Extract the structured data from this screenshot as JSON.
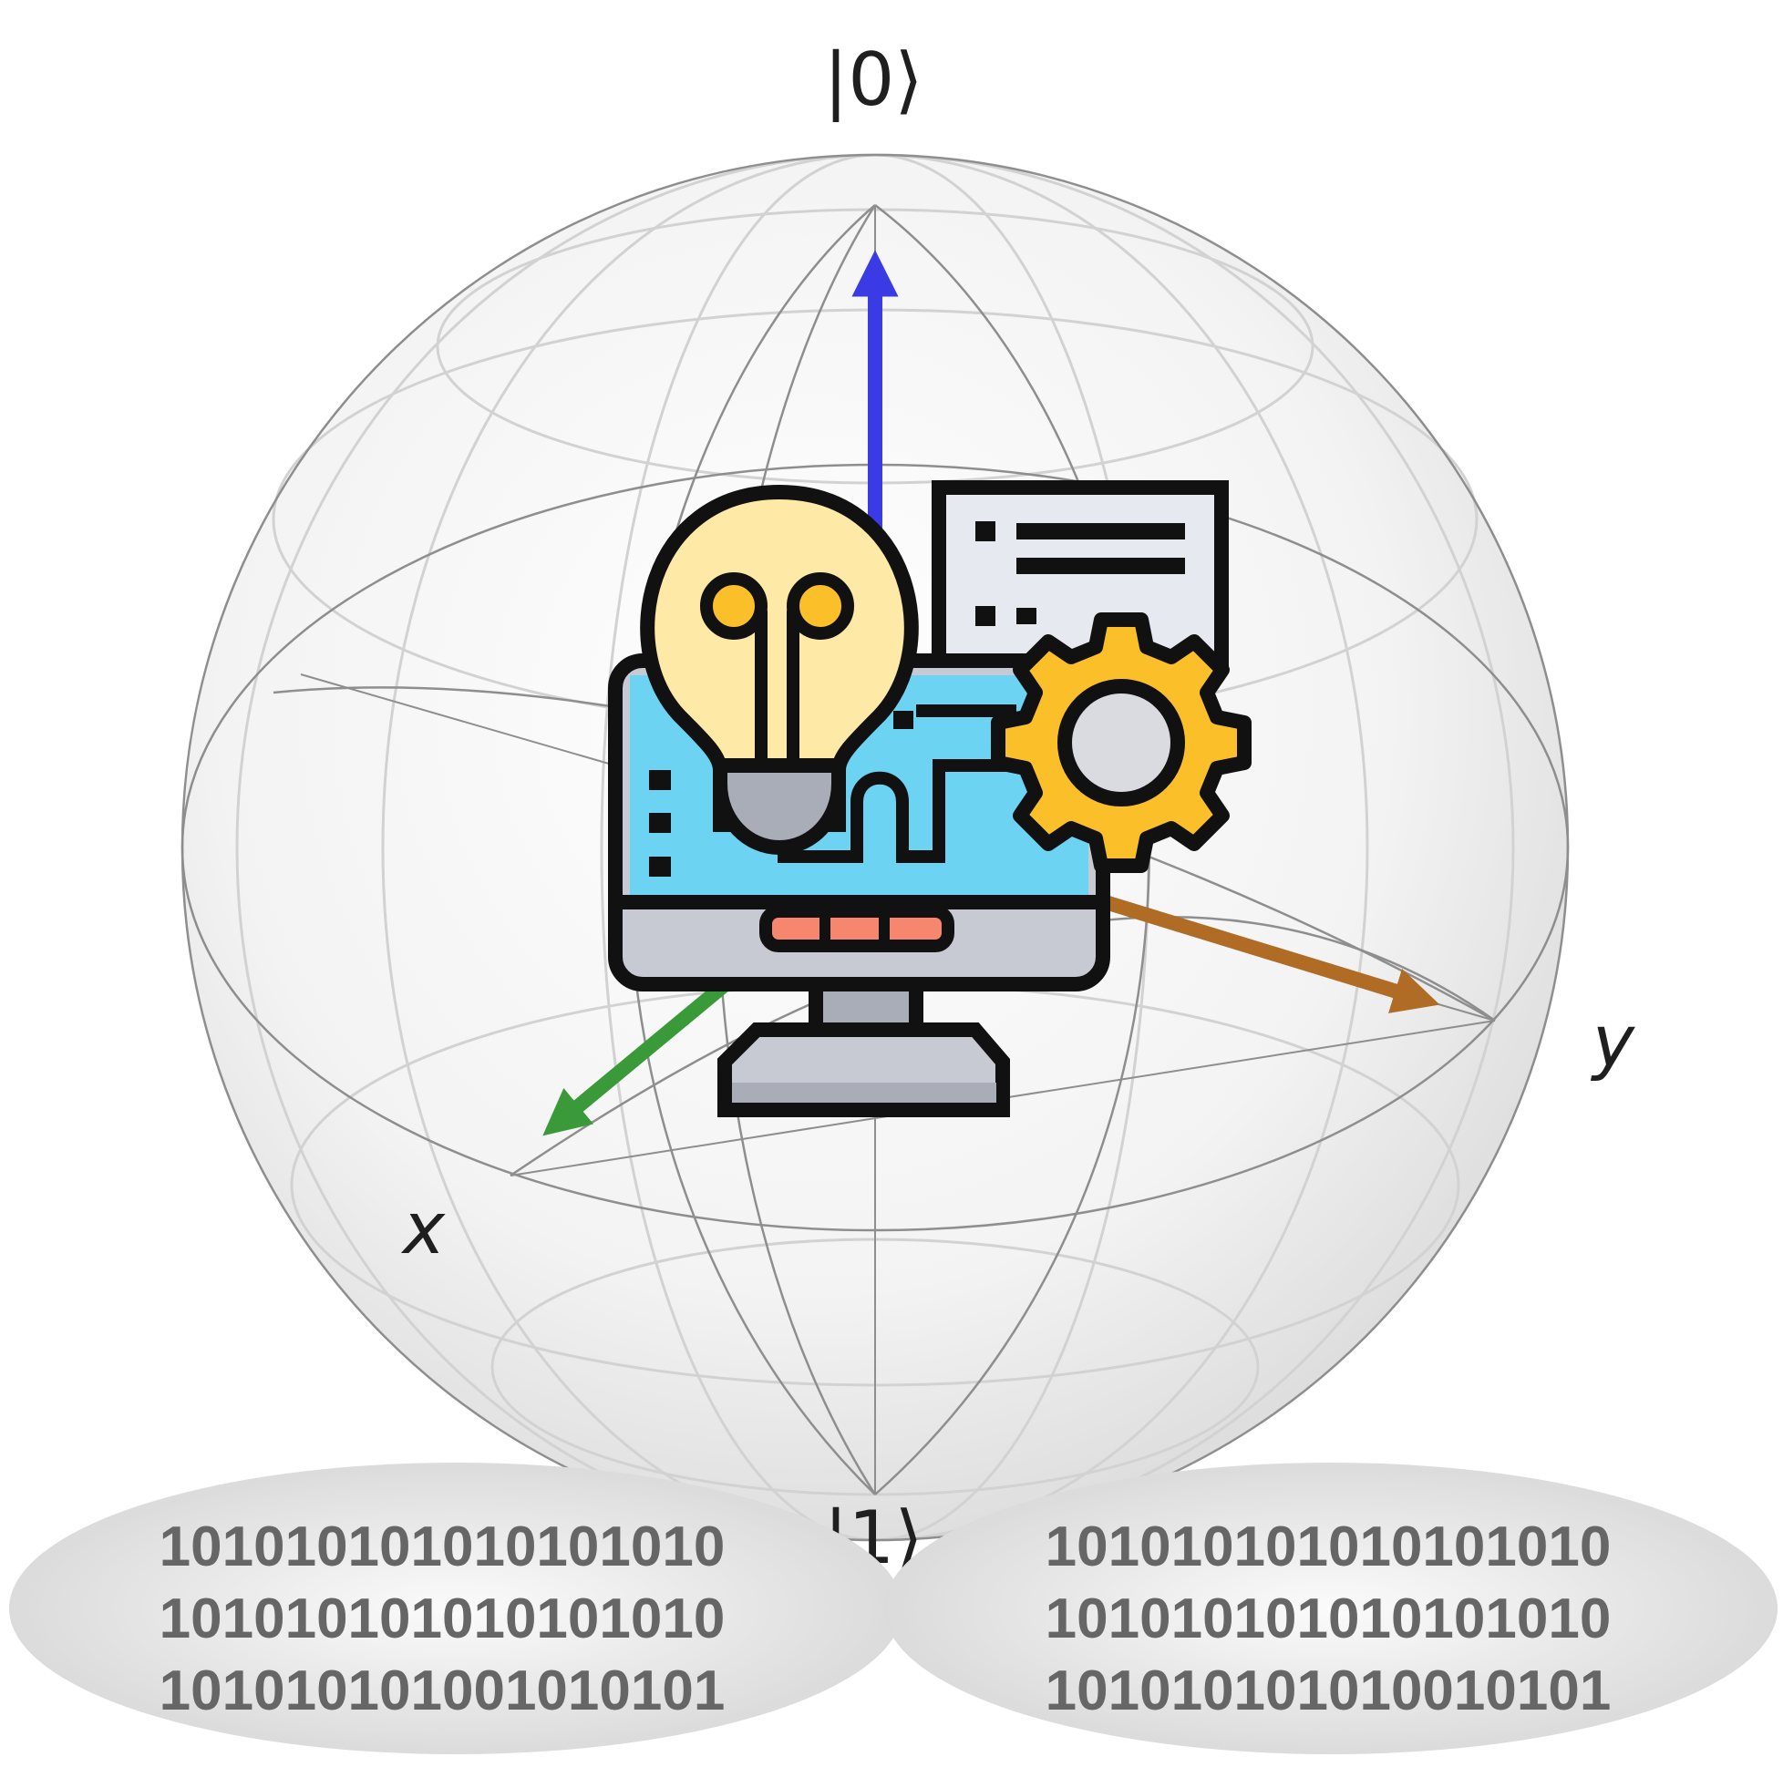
{
  "labels": {
    "ket0": "|0⟩",
    "ket1": "|1⟩",
    "x_axis": "x",
    "y_axis": "y"
  },
  "binary_left": [
    "101010101010101010",
    "101010101010101010",
    "101010101001010101"
  ],
  "binary_right": [
    "101010101010101010",
    "101010101010101010",
    "101010101010010101"
  ],
  "colors": {
    "z_arrow": "#3b3be6",
    "x_arrow": "#3a9a3a",
    "y_arrow": "#b06b25",
    "screen": "#6dd3f2",
    "bulb": "#ffe9a6",
    "gear": "#fbbf2a",
    "outline": "#111111"
  },
  "icons": [
    "bloch-sphere",
    "lightbulb-icon",
    "monitor-icon",
    "gear-icon",
    "document-icon"
  ]
}
